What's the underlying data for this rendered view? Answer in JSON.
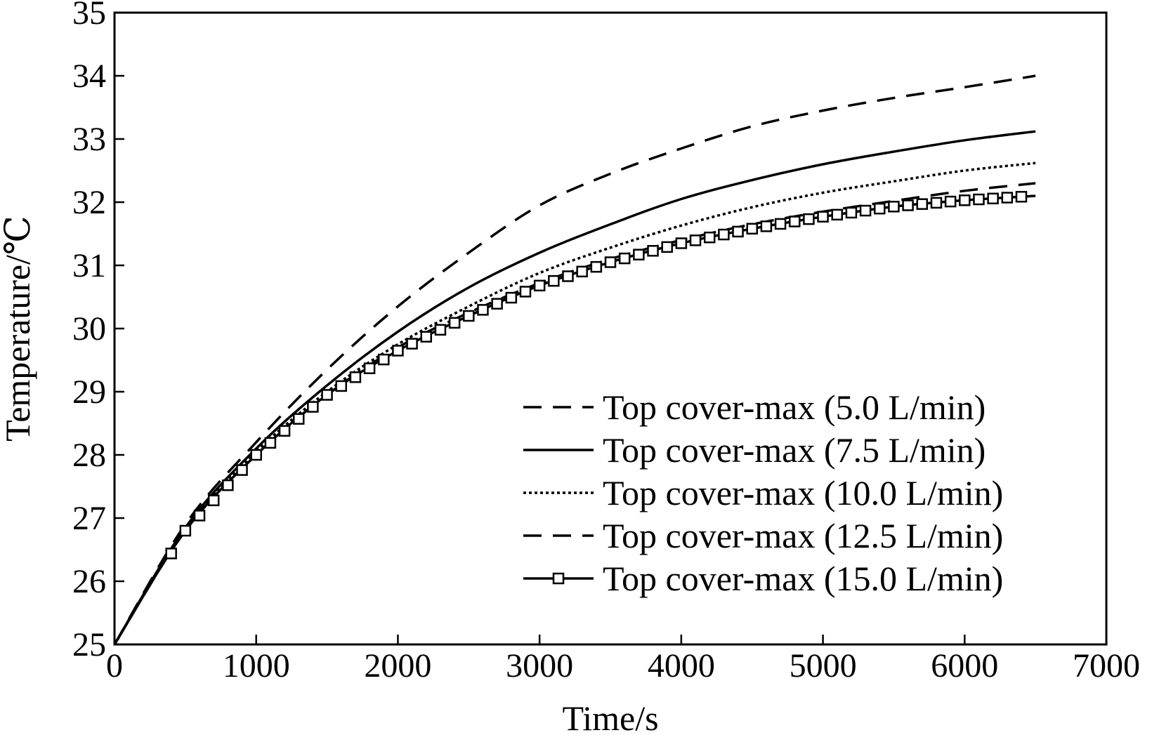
{
  "chart_data": {
    "type": "line",
    "title": "",
    "xlabel": "Time/s",
    "ylabel": "Temperature/℃",
    "xlim": [
      0,
      7000
    ],
    "ylim": [
      25,
      35
    ],
    "xticks": [
      "0",
      "1000",
      "2000",
      "3000",
      "4000",
      "5000",
      "6000",
      "7000"
    ],
    "yticks": [
      "25",
      "26",
      "27",
      "28",
      "29",
      "30",
      "31",
      "32",
      "33",
      "34",
      "35"
    ],
    "grid": false,
    "legend_position": "bottom-right",
    "x": [
      0,
      500,
      1000,
      1500,
      2000,
      2500,
      3000,
      3500,
      4000,
      4500,
      5000,
      5500,
      6000,
      6500
    ],
    "series": [
      {
        "name": "Top cover-max (5.0 L/min)",
        "style": "dashed",
        "values": [
          25.0,
          26.9,
          28.2,
          29.35,
          30.35,
          31.2,
          31.95,
          32.45,
          32.85,
          33.2,
          33.45,
          33.65,
          33.82,
          34.0
        ]
      },
      {
        "name": "Top cover-max (7.5 L/min)",
        "style": "solid",
        "values": [
          25.0,
          26.85,
          28.1,
          29.1,
          29.95,
          30.65,
          31.2,
          31.65,
          32.05,
          32.35,
          32.6,
          32.8,
          32.98,
          33.12
        ]
      },
      {
        "name": "Top cover-max (10.0 L/min)",
        "style": "dotted",
        "values": [
          25.0,
          26.82,
          28.05,
          29.0,
          29.75,
          30.35,
          30.88,
          31.28,
          31.63,
          31.92,
          32.15,
          32.33,
          32.5,
          32.62
        ]
      },
      {
        "name": "Top cover-max (12.5 L/min)",
        "style": "dashed",
        "values": [
          25.0,
          26.8,
          28.0,
          28.95,
          29.7,
          30.25,
          30.72,
          31.1,
          31.4,
          31.65,
          31.85,
          32.02,
          32.18,
          32.3
        ]
      },
      {
        "name": "Top cover-max (15.0 L/min)",
        "style": "solid-square",
        "values": [
          25.0,
          26.8,
          28.0,
          28.95,
          29.65,
          30.2,
          30.68,
          31.05,
          31.35,
          31.58,
          31.77,
          31.93,
          32.03,
          32.1
        ]
      }
    ]
  }
}
